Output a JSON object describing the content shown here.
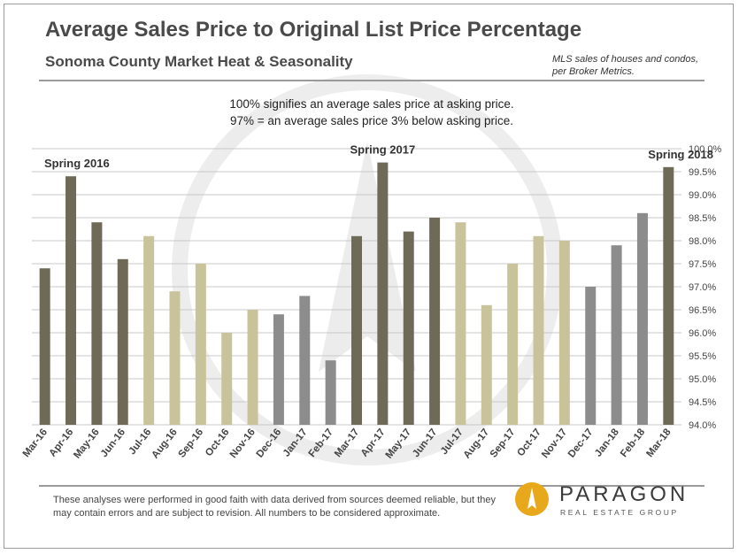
{
  "header": {
    "title": "Average Sales Price to Original List Price Percentage",
    "subtitle": "Sonoma County Market Heat & Seasonality",
    "source": "MLS sales of houses and condos, per Broker Metrics."
  },
  "note": {
    "line1": "100% signifies  an average sales  price at asking  price.",
    "line2": "97% = an average sales price 3% below asking  price."
  },
  "footer": {
    "disclaimer": "These analyses were performed in good faith with data derived from sources deemed reliable, but they may contain errors and are subject to revision. All numbers to be considered approximate.",
    "logo_name": "PARAGON",
    "logo_tag": "REAL ESTATE GROUP"
  },
  "colors": {
    "spring": "#6f6a58",
    "summer_fall": "#c9c39c",
    "winter": "#8c8c8c",
    "grid": "#c8c8c8",
    "axis_text": "#444444"
  },
  "chart_data": {
    "type": "bar",
    "categories": [
      "Mar-16",
      "Apr-16",
      "May-16",
      "Jun-16",
      "Jul-16",
      "Aug-16",
      "Sep-16",
      "Oct-16",
      "Nov-16",
      "Dec-16",
      "Jan-17",
      "Feb-17",
      "Mar-17",
      "Apr-17",
      "May-17",
      "Jun-17",
      "Jul-17",
      "Aug-17",
      "Sep-17",
      "Oct-17",
      "Nov-17",
      "Dec-17",
      "Jan-18",
      "Feb-18",
      "Mar-18"
    ],
    "values": [
      97.4,
      99.4,
      98.4,
      97.6,
      98.1,
      96.9,
      97.5,
      96.0,
      96.5,
      96.4,
      96.8,
      95.4,
      98.1,
      99.7,
      98.2,
      98.5,
      98.4,
      96.6,
      97.5,
      98.1,
      98.0,
      97.0,
      97.9,
      98.6,
      99.6
    ],
    "bar_style": [
      "spring",
      "spring",
      "spring",
      "spring",
      "summer_fall",
      "summer_fall",
      "summer_fall",
      "summer_fall",
      "summer_fall",
      "winter",
      "winter",
      "winter",
      "spring",
      "spring",
      "spring",
      "spring",
      "summer_fall",
      "summer_fall",
      "summer_fall",
      "summer_fall",
      "summer_fall",
      "winter",
      "winter",
      "winter",
      "spring"
    ],
    "ylim": [
      94.0,
      100.0
    ],
    "yticks": [
      "94.0%",
      "94.5%",
      "95.0%",
      "95.5%",
      "96.0%",
      "96.5%",
      "97.0%",
      "97.5%",
      "98.0%",
      "98.5%",
      "99.0%",
      "99.5%",
      "100.0%"
    ],
    "annotations": [
      {
        "text": "Spring 2016",
        "category": "Apr-16",
        "value": 99.4
      },
      {
        "text": "Spring 2017",
        "category": "Apr-17",
        "value": 99.7
      },
      {
        "text": "Spring 2018",
        "category": "Mar-18",
        "value": 99.6
      }
    ],
    "grid": true
  }
}
